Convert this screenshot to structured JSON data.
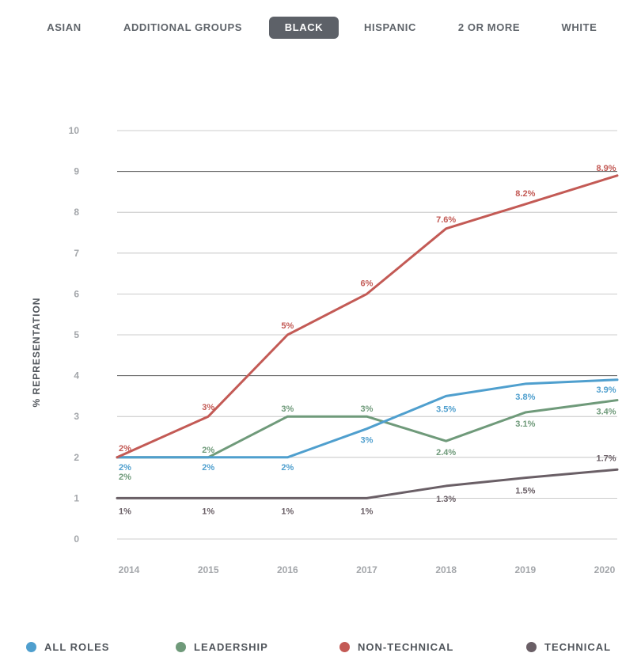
{
  "tabs": [
    {
      "label": "ASIAN",
      "active": false
    },
    {
      "label": "ADDITIONAL GROUPS",
      "active": false
    },
    {
      "label": "BLACK",
      "active": true
    },
    {
      "label": "HISPANIC",
      "active": false
    },
    {
      "label": "2 OR MORE",
      "active": false
    },
    {
      "label": "WHITE",
      "active": false
    }
  ],
  "chart_data": {
    "type": "line",
    "ylabel": "% REPRESENTATION",
    "xlabel": "",
    "ylim": [
      0,
      10
    ],
    "yticks": [
      "0",
      "1",
      "2",
      "3",
      "4",
      "5",
      "6",
      "7",
      "8",
      "9",
      "10"
    ],
    "x": [
      "2014",
      "2015",
      "2016",
      "2017",
      "2018",
      "2019",
      "2020"
    ],
    "grid": true,
    "legend_position": "bottom",
    "series": [
      {
        "name": "ALL ROLES",
        "color": "#4f9fce",
        "values": [
          2,
          2,
          2,
          2.7,
          3.5,
          3.8,
          3.9
        ],
        "labels": [
          "2%",
          "2%",
          "2%",
          "3%",
          "3.5%",
          "3.8%",
          "3.9%"
        ]
      },
      {
        "name": "LEADERSHIP",
        "color": "#6f9a7a",
        "values": [
          2,
          2,
          3,
          3,
          2.4,
          3.1,
          3.4
        ],
        "labels": [
          "2%",
          "2%",
          "3%",
          "3%",
          "2.4%",
          "3.1%",
          "3.4%"
        ]
      },
      {
        "name": "NON-TECHNICAL",
        "color": "#c35a55",
        "values": [
          2,
          3,
          5,
          6,
          7.6,
          8.2,
          8.9
        ],
        "labels": [
          "2%",
          "3%",
          "5%",
          "6%",
          "7.6%",
          "8.2%",
          "8.9%"
        ]
      },
      {
        "name": "TECHNICAL",
        "color": "#6a5f66",
        "values": [
          1,
          1,
          1,
          1,
          1.3,
          1.5,
          1.7
        ],
        "labels": [
          "1%",
          "1%",
          "1%",
          "1%",
          "1.3%",
          "1.5%",
          "1.7%"
        ]
      }
    ]
  },
  "legend": [
    {
      "label": "ALL ROLES",
      "color": "#4f9fce"
    },
    {
      "label": "LEADERSHIP",
      "color": "#6f9a7a"
    },
    {
      "label": "NON-TECHNICAL",
      "color": "#c35a55"
    },
    {
      "label": "TECHNICAL",
      "color": "#6a5f66"
    }
  ]
}
